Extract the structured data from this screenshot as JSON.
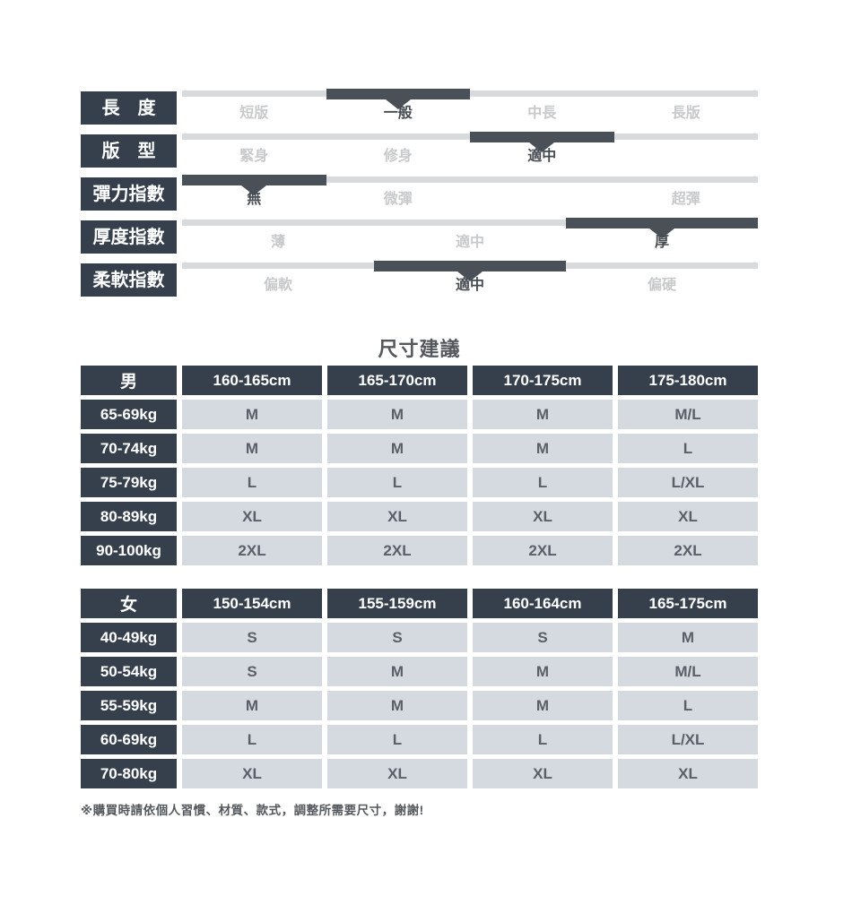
{
  "page": {
    "title": "尺寸建議",
    "footnote": "※購買時請依個人習慣、材質、款式，調整所需要尺寸，謝謝!"
  },
  "colors": {
    "header_dark": "#36404d",
    "slider_segment": "#4a5057",
    "slider_track": "#d9dadb",
    "option_muted": "#c7c9cb",
    "option_selected": "#464c52",
    "cell_bg": "#d4dae0",
    "cell_text": "#5a6067",
    "note_text": "#54585d"
  },
  "sliders": [
    {
      "id": "length",
      "label": "長　度",
      "options": [
        "短版",
        "一般",
        "中長",
        "長版"
      ],
      "selected": 1
    },
    {
      "id": "fit",
      "label": "版　型",
      "options": [
        "緊身",
        "修身",
        "適中",
        ""
      ],
      "selected": 2
    },
    {
      "id": "elasticity",
      "label": "彈力指數",
      "options": [
        "無",
        "微彈",
        "",
        "超彈"
      ],
      "selected": 0
    },
    {
      "id": "thickness",
      "label": "厚度指數",
      "options": [
        "薄",
        "適中",
        "厚"
      ],
      "selected": 2
    },
    {
      "id": "softness",
      "label": "柔軟指數",
      "options": [
        "偏軟",
        "適中",
        "偏硬"
      ],
      "selected": 1
    }
  ],
  "size_tables": [
    {
      "corner": "男",
      "columns": [
        "160-165cm",
        "165-170cm",
        "170-175cm",
        "175-180cm"
      ],
      "rows": [
        {
          "label": "65-69kg",
          "values": [
            "M",
            "M",
            "M",
            "M/L"
          ]
        },
        {
          "label": "70-74kg",
          "values": [
            "M",
            "M",
            "M",
            "L"
          ]
        },
        {
          "label": "75-79kg",
          "values": [
            "L",
            "L",
            "L",
            "L/XL"
          ]
        },
        {
          "label": "80-89kg",
          "values": [
            "XL",
            "XL",
            "XL",
            "XL"
          ]
        },
        {
          "label": "90-100kg",
          "values": [
            "2XL",
            "2XL",
            "2XL",
            "2XL"
          ]
        }
      ]
    },
    {
      "corner": "女",
      "columns": [
        "150-154cm",
        "155-159cm",
        "160-164cm",
        "165-175cm"
      ],
      "rows": [
        {
          "label": "40-49kg",
          "values": [
            "S",
            "S",
            "S",
            "M"
          ]
        },
        {
          "label": "50-54kg",
          "values": [
            "S",
            "M",
            "M",
            "M/L"
          ]
        },
        {
          "label": "55-59kg",
          "values": [
            "M",
            "M",
            "M",
            "L"
          ]
        },
        {
          "label": "60-69kg",
          "values": [
            "L",
            "L",
            "L",
            "L/XL"
          ]
        },
        {
          "label": "70-80kg",
          "values": [
            "XL",
            "XL",
            "XL",
            "XL"
          ]
        }
      ]
    }
  ]
}
